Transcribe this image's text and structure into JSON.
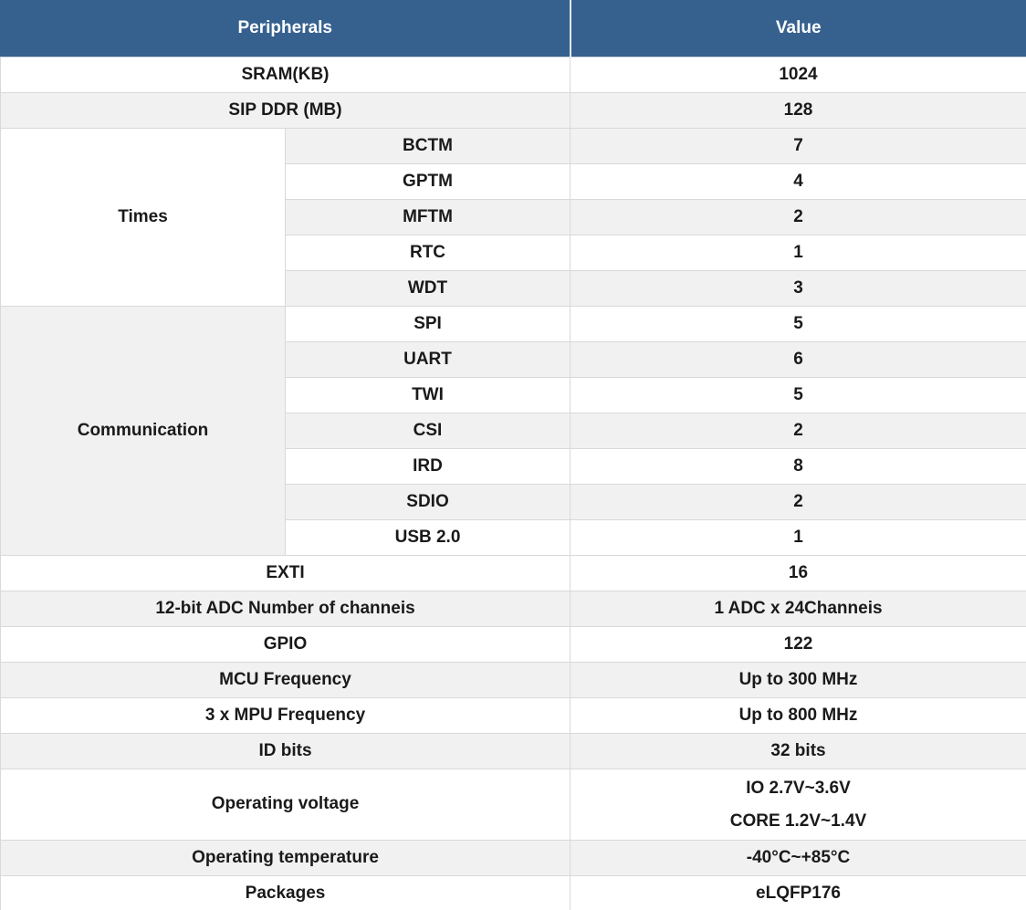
{
  "header": {
    "peripherals": "Peripherals",
    "value": "Value"
  },
  "rows": {
    "sram": {
      "label": "SRAM(KB)",
      "value": "1024"
    },
    "sip_ddr": {
      "label": "SIP DDR (MB)",
      "value": "128"
    },
    "times_group": {
      "label": "Times"
    },
    "bctm": {
      "label": "BCTM",
      "value": "7"
    },
    "gptm": {
      "label": "GPTM",
      "value": "4"
    },
    "mftm": {
      "label": "MFTM",
      "value": "2"
    },
    "rtc": {
      "label": "RTC",
      "value": "1"
    },
    "wdt": {
      "label": "WDT",
      "value": "3"
    },
    "comm_group": {
      "label": "Communication"
    },
    "spi": {
      "label": "SPI",
      "value": "5"
    },
    "uart": {
      "label": "UART",
      "value": "6"
    },
    "twi": {
      "label": "TWI",
      "value": "5"
    },
    "csi": {
      "label": "CSI",
      "value": "2"
    },
    "ird": {
      "label": "IRD",
      "value": "8"
    },
    "sdio": {
      "label": "SDIO",
      "value": "2"
    },
    "usb": {
      "label": "USB 2.0",
      "value": "1"
    },
    "exti": {
      "label": "EXTI",
      "value": "16"
    },
    "adc": {
      "label": "12-bit ADC Number of channeis",
      "value": "1 ADC x 24Channeis"
    },
    "gpio": {
      "label": "GPIO",
      "value": "122"
    },
    "mcu_freq": {
      "label": "MCU Frequency",
      "value": "Up to 300 MHz"
    },
    "mpu_freq": {
      "label": "3 x MPU Frequency",
      "value": "Up to 800 MHz"
    },
    "id_bits": {
      "label": "ID bits",
      "value": "32 bits"
    },
    "op_voltage": {
      "label": "Operating voltage",
      "value_line1": "IO 2.7V~3.6V",
      "value_line2": "CORE 1.2V~1.4V"
    },
    "op_temp": {
      "label": "Operating temperature",
      "value": "-40°C~+85°C"
    },
    "packages": {
      "label": "Packages",
      "value": "eLQFP176"
    }
  },
  "colors": {
    "header_bg": "#36618f",
    "header_text": "#ffffff",
    "stripe_bg": "#f1f1f1",
    "row_bg": "#ffffff",
    "border": "#d9d9d9",
    "text": "#1a1a1a"
  }
}
